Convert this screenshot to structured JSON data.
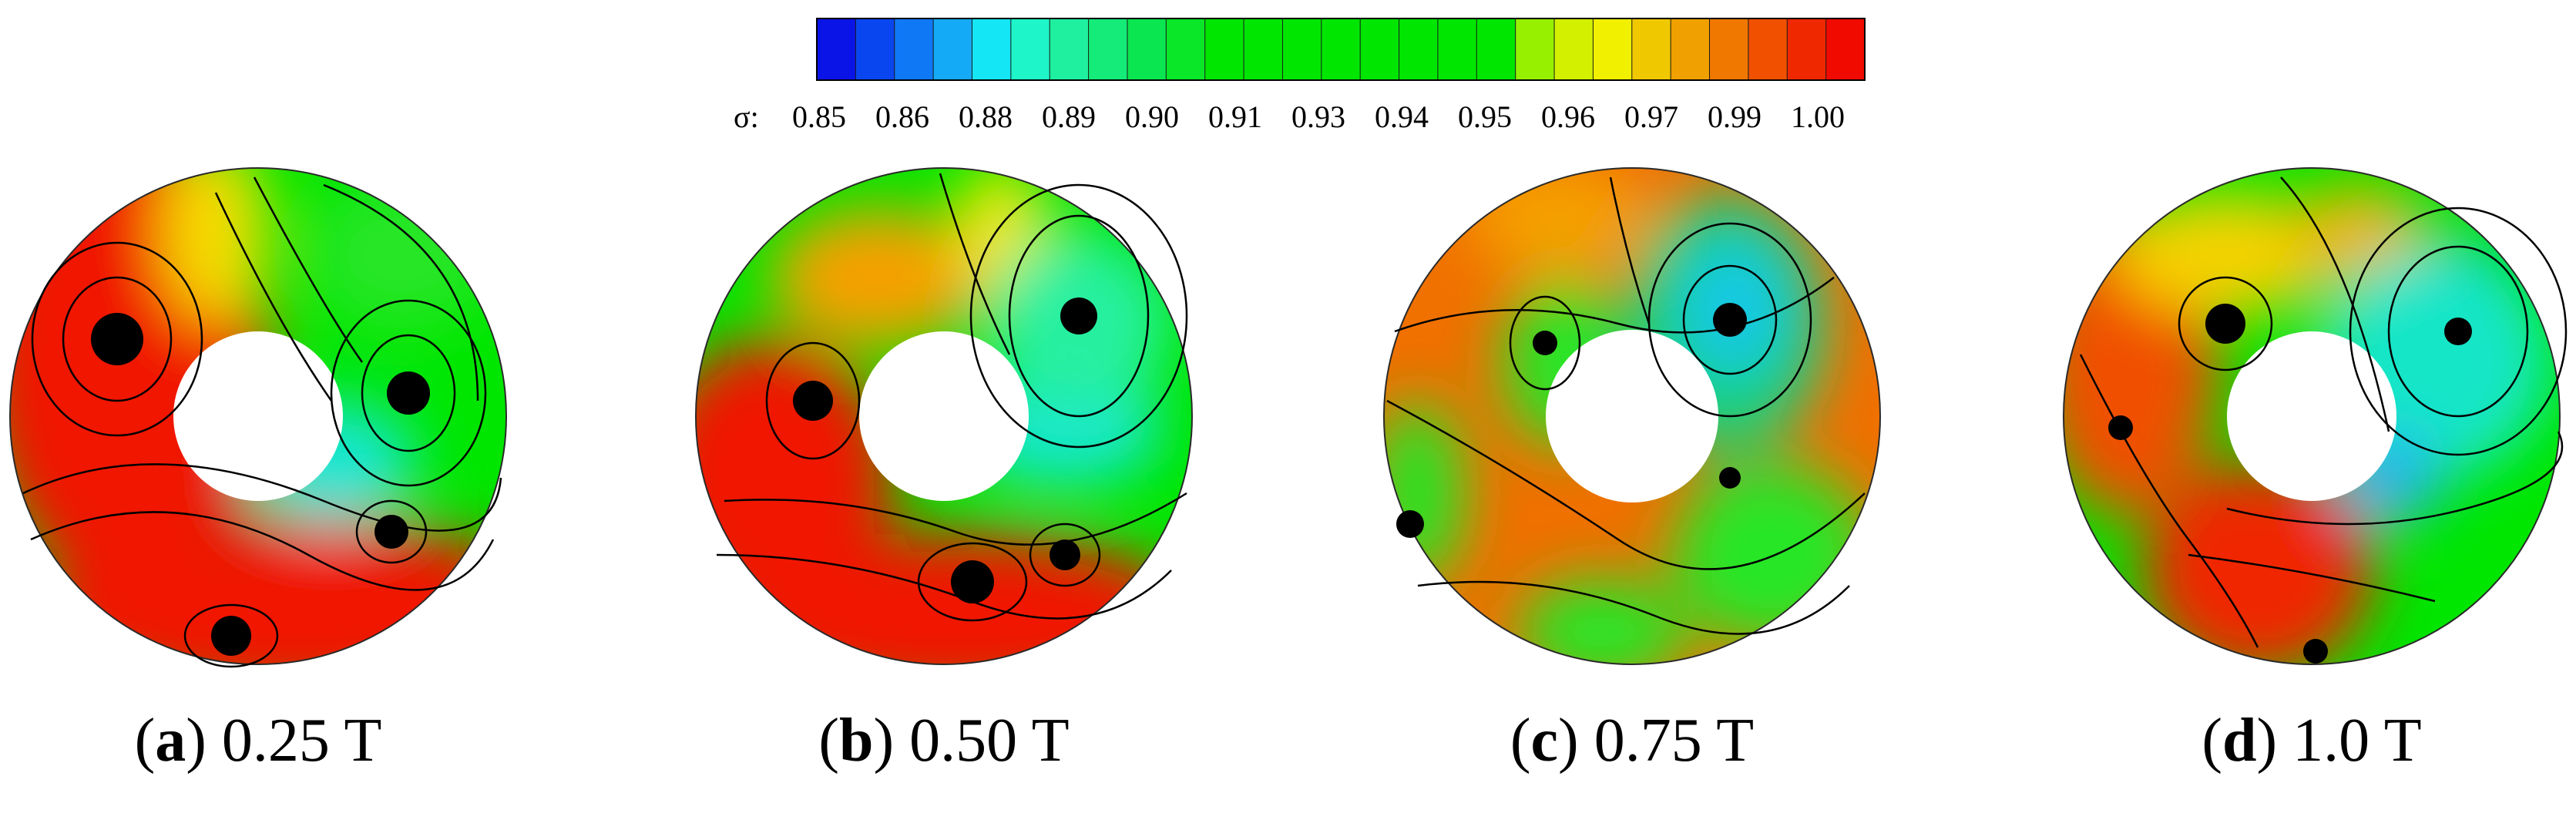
{
  "colorbar": {
    "symbol": "σ:",
    "tick_labels": [
      "0.85",
      "0.86",
      "0.88",
      "0.89",
      "0.90",
      "0.91",
      "0.93",
      "0.94",
      "0.95",
      "0.96",
      "0.97",
      "0.99",
      "1.00"
    ],
    "colors": [
      "#0a14e6",
      "#0a46f0",
      "#0f78f5",
      "#14aaf5",
      "#14e6f5",
      "#1ef5c8",
      "#1ef0a0",
      "#14eb78",
      "#0ae650",
      "#0ae628",
      "#00e600",
      "#00e600",
      "#00e600",
      "#00e600",
      "#00e600",
      "#00e600",
      "#00e600",
      "#00e600",
      "#96f000",
      "#d2f000",
      "#f0f000",
      "#f0c800",
      "#f0a000",
      "#f07800",
      "#f05000",
      "#f02800",
      "#f00a00"
    ]
  },
  "panels": [
    {
      "letter": "a",
      "pre": "(",
      "post": ")",
      "label": " 0.25 T"
    },
    {
      "letter": "b",
      "pre": "(",
      "post": ")",
      "label": " 0.50 T"
    },
    {
      "letter": "c",
      "pre": "(",
      "post": ")",
      "label": " 0.75 T"
    },
    {
      "letter": "d",
      "pre": "(",
      "post": ")",
      "label": " 1.0 T"
    }
  ]
}
